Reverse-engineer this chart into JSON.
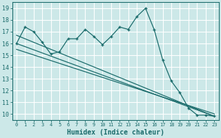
{
  "xlabel": "Humidex (Indice chaleur)",
  "xlim": [
    -0.5,
    23.5
  ],
  "ylim": [
    9.5,
    19.5
  ],
  "yticks": [
    10,
    11,
    12,
    13,
    14,
    15,
    16,
    17,
    18,
    19
  ],
  "xticks": [
    0,
    1,
    2,
    3,
    4,
    5,
    6,
    7,
    8,
    9,
    10,
    11,
    12,
    13,
    14,
    15,
    16,
    17,
    18,
    19,
    20,
    21,
    22,
    23
  ],
  "bg_color": "#cce8e8",
  "grid_color": "#ffffff",
  "line_color": "#1a6b6b",
  "line1_x": [
    0,
    1,
    2,
    3,
    4,
    5,
    6,
    7,
    8,
    9,
    10,
    11,
    12,
    13,
    14,
    15,
    16,
    17,
    18,
    19,
    20,
    21,
    22,
    23
  ],
  "line1_y": [
    16.0,
    17.4,
    17.0,
    16.1,
    15.1,
    15.3,
    16.4,
    16.4,
    17.2,
    16.6,
    15.9,
    16.6,
    17.4,
    17.2,
    18.3,
    19.0,
    17.2,
    14.6,
    12.8,
    11.8,
    10.5,
    9.9,
    9.9,
    9.8
  ],
  "line2_x": [
    0,
    23
  ],
  "line2_y": [
    16.0,
    9.8
  ],
  "line3_x": [
    0,
    23
  ],
  "line3_y": [
    16.7,
    9.8
  ],
  "line4_x": [
    0,
    23
  ],
  "line4_y": [
    15.5,
    10.0
  ]
}
